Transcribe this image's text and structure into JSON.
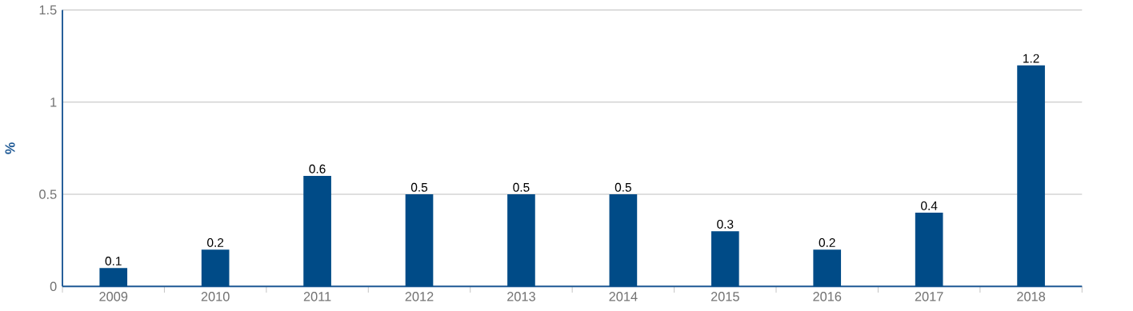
{
  "chart_data": {
    "type": "bar",
    "ylabel": "%",
    "categories": [
      "2009",
      "2010",
      "2011",
      "2012",
      "2013",
      "2014",
      "2015",
      "2016",
      "2017",
      "2018"
    ],
    "values": [
      0.1,
      0.2,
      0.6,
      0.5,
      0.5,
      0.5,
      0.3,
      0.2,
      0.4,
      1.2
    ],
    "color": "#004b87",
    "ylim": [
      0,
      1.5
    ],
    "yticks": [
      0,
      0.5,
      1,
      1.5
    ],
    "grid": "y",
    "data_labels": true
  }
}
